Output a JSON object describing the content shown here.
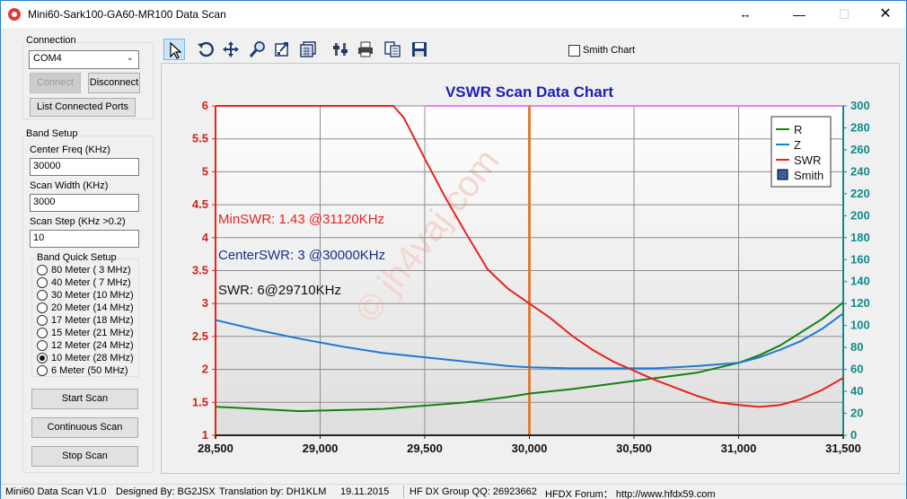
{
  "window": {
    "title": "Mini60-Sark100-GA60-MR100 Data Scan"
  },
  "connection": {
    "title": "Connection",
    "port": "COM4",
    "connect_label": "Connect",
    "disconnect_label": "Disconnect",
    "list_ports_label": "List Connected Ports"
  },
  "band_setup": {
    "title": "Band Setup",
    "center_freq_label": "Center Freq  (KHz)",
    "center_freq_value": "30000",
    "scan_width_label": "Scan Width   (KHz)",
    "scan_width_value": "3000",
    "scan_step_label": "Scan Step     (KHz >0.2)",
    "scan_step_value": "10",
    "quick_title": "Band Quick Setup",
    "bands": [
      {
        "label": "80 Meter (  3 MHz)",
        "selected": false
      },
      {
        "label": "40 Meter (  7 MHz)",
        "selected": false
      },
      {
        "label": "30 Meter (10 MHz)",
        "selected": false
      },
      {
        "label": "20 Meter (14 MHz)",
        "selected": false
      },
      {
        "label": "17 Meter (18 MHz)",
        "selected": false
      },
      {
        "label": "15 Meter (21 MHz)",
        "selected": false
      },
      {
        "label": "12 Meter (24 MHz)",
        "selected": false
      },
      {
        "label": "10 Meter (28 MHz)",
        "selected": true
      },
      {
        "label": "6 Meter   (50 MHz)",
        "selected": false
      }
    ],
    "start_scan_label": "Start Scan",
    "continuous_scan_label": "Continuous Scan",
    "stop_scan_label": "Stop Scan"
  },
  "toolbar": {
    "tools": [
      "pointer-icon",
      "rotate-icon",
      "move-icon",
      "zoom-icon",
      "zoom-box-icon",
      "grid-icon",
      "settings-icon",
      "print-icon",
      "copy-icon",
      "save-icon"
    ],
    "smith_label": "Smith Chart",
    "smith_checked": false
  },
  "statusbar": {
    "version": "Mini60 Data Scan V1.0",
    "designed_by": "Designed By: BG2JSX",
    "translation": "Translation by: DH1KLM",
    "date": "19.11.2015",
    "group": "HF DX Group QQ: 26923662",
    "forum": "HFDX Forum：  http://www.hfdx59.com"
  },
  "chart_data": {
    "type": "line",
    "title": "VSWR Scan Data Chart",
    "watermark": "© jh4vaj.com",
    "xlim": [
      28500,
      31500
    ],
    "x_ticks": [
      28500,
      29000,
      29500,
      30000,
      30500,
      31000,
      31500
    ],
    "x_tick_labels": [
      "28,500",
      "29,000",
      "29,500",
      "30,000",
      "30,500",
      "31,000",
      "31,500"
    ],
    "ylim_left": [
      1,
      6
    ],
    "y_left_ticks": [
      "1",
      "1.5",
      "2",
      "2.5",
      "3",
      "3.5",
      "4",
      "4.5",
      "5",
      "5.5",
      "6"
    ],
    "ylim_right": [
      0,
      300
    ],
    "y_right_ticks": [
      "0",
      "20",
      "40",
      "60",
      "80",
      "100",
      "120",
      "140",
      "160",
      "180",
      "200",
      "220",
      "240",
      "260",
      "280",
      "300"
    ],
    "legend": [
      "R",
      "Z",
      "SWR",
      "Smith"
    ],
    "legend_position": "top-right",
    "grid": true,
    "annotations": {
      "min_swr": "MinSWR: 1.43 @31120KHz",
      "center_swr": "CenterSWR: 3 @30000KHz",
      "cursor_swr": "SWR: 6@29710KHz"
    },
    "center_marker_x": 30000,
    "series": [
      {
        "name": "R",
        "axis": "right",
        "color": "#128212",
        "x": [
          28500,
          28700,
          28900,
          29100,
          29300,
          29500,
          29700,
          29900,
          30000,
          30200,
          30400,
          30600,
          30800,
          31000,
          31100,
          31200,
          31300,
          31400,
          31500
        ],
        "y": [
          26,
          24,
          22,
          23,
          24,
          27,
          30,
          35,
          38,
          42,
          47,
          52,
          57,
          66,
          73,
          82,
          94,
          106,
          121
        ]
      },
      {
        "name": "Z",
        "axis": "right",
        "color": "#1e7ad2",
        "x": [
          28500,
          28700,
          28900,
          29100,
          29300,
          29500,
          29700,
          29900,
          30000,
          30200,
          30400,
          30600,
          30800,
          31000,
          31100,
          31200,
          31300,
          31400,
          31500
        ],
        "y": [
          105,
          96,
          88,
          81,
          75,
          71,
          67,
          63,
          62,
          61,
          61,
          61,
          63,
          66,
          71,
          78,
          86,
          97,
          111
        ]
      },
      {
        "name": "SWR",
        "axis": "left",
        "color": "#e8231e",
        "x": [
          28500,
          29000,
          29300,
          29350,
          29400,
          29500,
          29600,
          29700,
          29800,
          29900,
          30000,
          30100,
          30200,
          30300,
          30400,
          30500,
          30600,
          30700,
          30800,
          30900,
          31000,
          31100,
          31200,
          31300,
          31400,
          31500
        ],
        "y": [
          6,
          6,
          6,
          6,
          5.82,
          5.2,
          4.6,
          4.05,
          3.52,
          3.22,
          3.0,
          2.78,
          2.52,
          2.3,
          2.12,
          1.98,
          1.84,
          1.72,
          1.6,
          1.5,
          1.46,
          1.43,
          1.46,
          1.55,
          1.69,
          1.87
        ]
      }
    ]
  }
}
